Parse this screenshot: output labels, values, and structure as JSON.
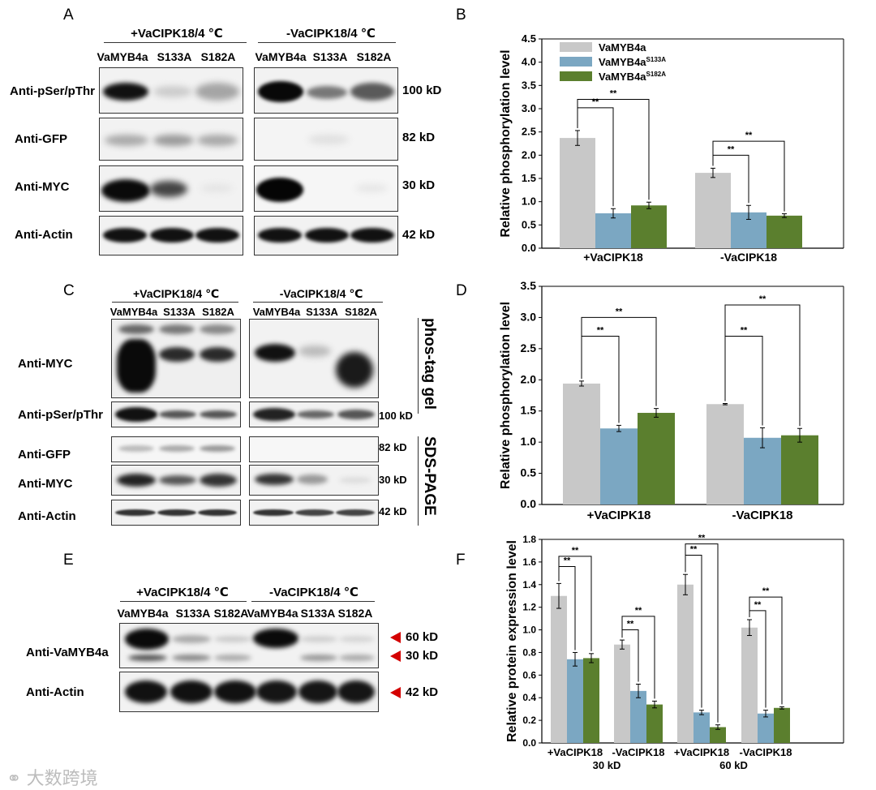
{
  "panels": {
    "A": {
      "letter": "A",
      "cond_plus": "+VaCIPK18/4 ℃",
      "cond_minus": "-VaCIPK18/4 ℃",
      "lanes": [
        "VaMYB4a",
        "S133A",
        "S182A"
      ],
      "rows": [
        "Anti-pSer/pThr",
        "Anti-GFP",
        "Anti-MYC",
        "Anti-Actin"
      ],
      "sizes": [
        "100 kD",
        "82 kD",
        "30 kD",
        "42 kD"
      ]
    },
    "C": {
      "letter": "C",
      "cond_plus": "+VaCIPK18/4 ℃",
      "cond_minus": "-VaCIPK18/4 ℃",
      "lanes": [
        "VaMYB4a",
        "S133A",
        "S182A"
      ],
      "rows": [
        "Anti-MYC",
        "Anti-pSer/pThr",
        "Anti-GFP",
        "Anti-MYC",
        "Anti-Actin"
      ],
      "sizes": [
        "100 kD",
        "82 kD",
        "30 kD",
        "42 kD"
      ],
      "side1": "phos-tag gel",
      "side2": "SDS-PAGE"
    },
    "E": {
      "letter": "E",
      "cond_plus": "+VaCIPK18/4 ℃",
      "cond_minus": "-VaCIPK18/4 ℃",
      "lanes": [
        "VaMYB4a",
        "S133A",
        "S182A",
        "VaMYB4a",
        "S133A",
        "S182A"
      ],
      "rows": [
        "Anti-VaMYB4a",
        "Anti-Actin"
      ],
      "sizes": [
        "60 kD",
        "30 kD",
        "42 kD"
      ]
    }
  },
  "colors": {
    "gray": "#c8c8c8",
    "blue": "#7ba7c2",
    "green": "#5b7f2e",
    "arrow": "#d40000"
  },
  "watermark": "大数跨境",
  "chart_data": [
    {
      "id": "B",
      "letter": "B",
      "type": "bar",
      "ylabel": "Relative phosphorylation level",
      "ylim": [
        0,
        4.5
      ],
      "ytick_step": 0.5,
      "ytick_decimals": 1,
      "categories": [
        "+VaCIPK18",
        "-VaCIPK18"
      ],
      "legend": [
        "VaMYB4a",
        "VaMYB4a",
        "VaMYB4a"
      ],
      "legend_sup": [
        "",
        "S133A",
        "S182A"
      ],
      "legend_position": "top-left",
      "series": [
        {
          "name": "VaMYB4a",
          "values": [
            2.37,
            1.62
          ],
          "errors": [
            0.16,
            0.1
          ]
        },
        {
          "name": "VaMYB4aS133A",
          "values": [
            0.75,
            0.77
          ],
          "errors": [
            0.1,
            0.15
          ]
        },
        {
          "name": "VaMYB4aS182A",
          "values": [
            0.92,
            0.7
          ],
          "errors": [
            0.07,
            0.04
          ]
        }
      ],
      "significance": [
        {
          "group": 0,
          "from": 0,
          "to": 1,
          "y": 3.02,
          "label": "**"
        },
        {
          "group": 0,
          "from": 0,
          "to": 2,
          "y": 3.2,
          "label": "**"
        },
        {
          "group": 1,
          "from": 0,
          "to": 1,
          "y": 2.0,
          "label": "**"
        },
        {
          "group": 1,
          "from": 0,
          "to": 2,
          "y": 2.3,
          "label": "**"
        }
      ]
    },
    {
      "id": "D",
      "letter": "D",
      "type": "bar",
      "ylabel": "Relative phosphorylation level",
      "ylim": [
        0,
        3.5
      ],
      "ytick_step": 0.5,
      "ytick_decimals": 1,
      "categories": [
        "+VaCIPK18",
        "-VaCIPK18"
      ],
      "series": [
        {
          "name": "VaMYB4a",
          "values": [
            1.94,
            1.61
          ],
          "errors": [
            0.04,
            0.01
          ]
        },
        {
          "name": "VaMYB4aS133A",
          "values": [
            1.22,
            1.07
          ],
          "errors": [
            0.05,
            0.16
          ]
        },
        {
          "name": "VaMYB4aS182A",
          "values": [
            1.47,
            1.11
          ],
          "errors": [
            0.07,
            0.11
          ]
        }
      ],
      "significance": [
        {
          "group": 0,
          "from": 0,
          "to": 1,
          "y": 2.7,
          "label": "**"
        },
        {
          "group": 0,
          "from": 0,
          "to": 2,
          "y": 3.0,
          "label": "**"
        },
        {
          "group": 1,
          "from": 0,
          "to": 1,
          "y": 2.7,
          "label": "**"
        },
        {
          "group": 1,
          "from": 0,
          "to": 2,
          "y": 3.2,
          "label": "**"
        }
      ]
    },
    {
      "id": "F",
      "letter": "F",
      "type": "bar",
      "ylabel": "Relative protein expression level",
      "ylim": [
        0,
        1.8
      ],
      "ytick_step": 0.2,
      "ytick_decimals": 1,
      "categories": [
        "+VaCIPK18",
        "-VaCIPK18",
        "+VaCIPK18",
        "-VaCIPK18"
      ],
      "group_labels": [
        "30 kD",
        "60 kD"
      ],
      "series": [
        {
          "name": "VaMYB4a",
          "values": [
            1.3,
            0.87,
            1.4,
            1.02
          ],
          "errors": [
            0.11,
            0.04,
            0.09,
            0.07
          ]
        },
        {
          "name": "VaMYB4aS133A",
          "values": [
            0.74,
            0.46,
            0.27,
            0.26
          ],
          "errors": [
            0.06,
            0.06,
            0.02,
            0.03
          ]
        },
        {
          "name": "VaMYB4aS182A",
          "values": [
            0.75,
            0.34,
            0.14,
            0.31
          ],
          "errors": [
            0.04,
            0.03,
            0.02,
            0.01
          ]
        }
      ],
      "significance": [
        {
          "group": 0,
          "from": 0,
          "to": 1,
          "y": 1.56,
          "label": "**"
        },
        {
          "group": 0,
          "from": 0,
          "to": 2,
          "y": 1.65,
          "label": "**"
        },
        {
          "group": 1,
          "from": 0,
          "to": 1,
          "y": 1.0,
          "label": "**"
        },
        {
          "group": 1,
          "from": 0,
          "to": 2,
          "y": 1.12,
          "label": "**"
        },
        {
          "group": 2,
          "from": 0,
          "to": 1,
          "y": 1.66,
          "label": "**"
        },
        {
          "group": 2,
          "from": 0,
          "to": 2,
          "y": 1.76,
          "label": "**"
        },
        {
          "group": 3,
          "from": 0,
          "to": 1,
          "y": 1.17,
          "label": "**"
        },
        {
          "group": 3,
          "from": 0,
          "to": 2,
          "y": 1.29,
          "label": "**"
        }
      ]
    }
  ]
}
